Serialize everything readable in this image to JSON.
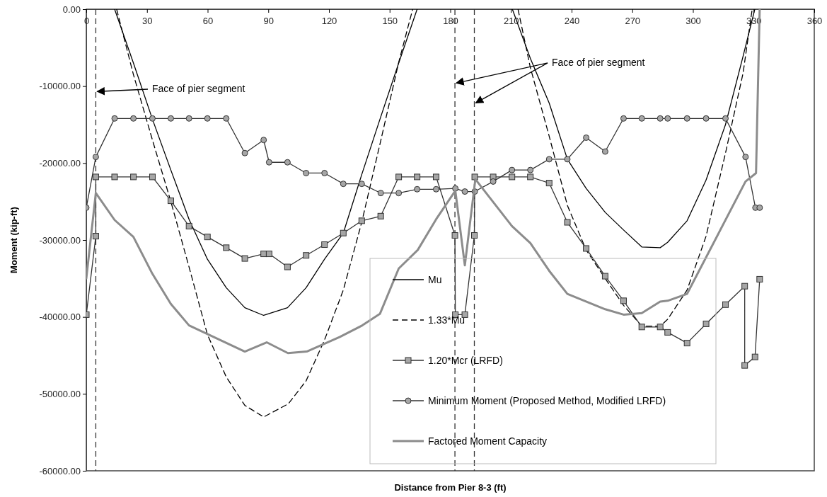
{
  "chart_data": {
    "type": "line",
    "xlabel": "Distance from Pier 8-3 (ft)",
    "ylabel": "Moment (kip-ft)",
    "xlim": [
      0,
      360
    ],
    "xticks": [
      0,
      30,
      60,
      90,
      120,
      150,
      180,
      210,
      240,
      270,
      300,
      330,
      360
    ],
    "ylim": [
      -60000,
      0
    ],
    "yticks": [
      {
        "value": 0,
        "label": "0.00"
      },
      {
        "value": -10000,
        "label": "-10000.00"
      },
      {
        "value": -20000,
        "label": "-20000.00"
      },
      {
        "value": -30000,
        "label": "-30000.00"
      },
      {
        "value": -40000,
        "label": "-40000.00"
      },
      {
        "value": -50000,
        "label": "-50000.00"
      },
      {
        "value": -60000,
        "label": "-60000.00"
      }
    ],
    "grid": false,
    "legend": "bottom right",
    "series": [
      {
        "name": "Mu",
        "color": "#000000",
        "line_style": "solid",
        "marker": "none",
        "x": [
          14,
          23.3,
          32.7,
          41.8,
          50.8,
          59.9,
          69.2,
          78.4,
          87.7,
          99.5,
          108.7,
          117.8,
          127.1,
          136.2,
          145.6,
          154.5,
          163.6,
          187,
          210.7,
          219.6,
          228.9,
          237.9,
          247.2,
          256.6,
          265.7,
          274.7,
          283.8,
          287.5,
          297.1,
          306.5,
          316.1,
          324.8,
          330.6
        ],
        "values": [
          0,
          -7000,
          -14300,
          -20900,
          -27300,
          -32500,
          -36200,
          -38800,
          -39800,
          -38800,
          -36200,
          -32500,
          -29100,
          -21500,
          -14000,
          -7000,
          0,
          null,
          0,
          -6400,
          -12200,
          -19500,
          -23300,
          -26400,
          -28700,
          -30900,
          -31000,
          -30300,
          -27500,
          -22200,
          -15000,
          -6100,
          0
        ]
      },
      {
        "name": "1.33*Mu",
        "color": "#000000",
        "line_style": "dashed",
        "marker": "none",
        "x": [
          15,
          23.3,
          32.7,
          41.8,
          50.8,
          59.9,
          69.2,
          78.4,
          87.7,
          99.9,
          108.7,
          117.8,
          127.1,
          136.2,
          145.6,
          154.5,
          161.4,
          187,
          213.5,
          219.6,
          228.9,
          237.9,
          247.2,
          256.6,
          265.7,
          274.7,
          283.8,
          287.5,
          297.1,
          306.5,
          316.1,
          324.8,
          329.3
        ],
        "values": [
          0,
          -8500,
          -17000,
          -25000,
          -33500,
          -42300,
          -47800,
          -51500,
          -53000,
          -51300,
          -48300,
          -43000,
          -36500,
          -27700,
          -17100,
          -6900,
          0,
          null,
          0,
          -7600,
          -16500,
          -25500,
          -31300,
          -35000,
          -38500,
          -41200,
          -41200,
          -40300,
          -36500,
          -29500,
          -18700,
          -8300,
          0
        ]
      },
      {
        "name": "1.20*Mcr (LRFD)",
        "color": "#333333",
        "line_style": "solid",
        "marker": "square",
        "x": [
          0,
          4.7,
          4.7,
          14,
          23.3,
          32.7,
          41.8,
          50.8,
          59.9,
          69.2,
          78.4,
          87.7,
          90.4,
          99.5,
          108.7,
          117.8,
          127.1,
          136.2,
          145.6,
          154.5,
          163.6,
          173,
          182.3,
          182.5,
          187.2,
          191.9,
          192.1,
          201.2,
          210.5,
          219.6,
          228.9,
          237.9,
          247.2,
          256.6,
          265.7,
          274.7,
          283.8,
          287.5,
          297.1,
          306.5,
          316.1,
          325.6,
          325.6,
          330.7,
          333
        ],
        "values": [
          -39700,
          -29500,
          -21800,
          -21800,
          -21800,
          -21800,
          -24900,
          -28200,
          -29600,
          -31000,
          -32400,
          -31800,
          -31800,
          -33500,
          -32000,
          -30600,
          -29100,
          -27500,
          -26900,
          -21800,
          -21800,
          -21800,
          -29400,
          -39700,
          -39700,
          -29400,
          -21800,
          -21800,
          -21800,
          -21800,
          -22600,
          -27700,
          -31100,
          -34700,
          -37900,
          -41300,
          -41300,
          -42000,
          -43400,
          -40900,
          -38400,
          -36000,
          -46300,
          -45200,
          -35100
        ]
      },
      {
        "name": "Minimum Moment (Proposed Method, Modified LRFD)",
        "color": "#333333",
        "line_style": "solid",
        "marker": "circle",
        "x": [
          0,
          4.7,
          14,
          23.3,
          32.7,
          41.8,
          50.8,
          59.9,
          69.2,
          78.4,
          87.7,
          90.4,
          99.5,
          108.7,
          117.8,
          127.1,
          136.2,
          145.6,
          154.5,
          163.6,
          173,
          182.5,
          187.2,
          192.1,
          201.2,
          210.5,
          219.6,
          228.9,
          237.9,
          247.2,
          256.6,
          265.7,
          274.7,
          283.8,
          287.5,
          297.1,
          306.5,
          316.1,
          326,
          330.9,
          333
        ],
        "values": [
          -25800,
          -19200,
          -14200,
          -14200,
          -14200,
          -14200,
          -14200,
          -14200,
          -14200,
          -18700,
          -17000,
          -19900,
          -19900,
          -21300,
          -21300,
          -22700,
          -22700,
          -23900,
          -23900,
          -23400,
          -23400,
          -23300,
          -23700,
          -23700,
          -22400,
          -20900,
          -20900,
          -19500,
          -19500,
          -16700,
          -18500,
          -14200,
          -14200,
          -14200,
          -14200,
          -14200,
          -14200,
          -14200,
          -19200,
          -25800,
          -25800
        ]
      },
      {
        "name": "Factored Moment Capacity",
        "color": "#8c8c8c",
        "line_style": "solid",
        "marker": "none",
        "x": [
          0,
          4.7,
          14,
          23.3,
          32.7,
          41.8,
          50.8,
          78.4,
          89.2,
          99.7,
          109,
          125.4,
          136.5,
          145.2,
          154.5,
          163.9,
          173,
          182.5,
          187.2,
          192.4,
          210.5,
          219.6,
          228.9,
          237.9,
          256.6,
          265.7,
          274.7,
          283.8,
          287.5,
          297.1,
          326,
          331.2,
          333
        ],
        "values": [
          -35000,
          -23900,
          -27400,
          -29600,
          -34400,
          -38300,
          -41100,
          -44500,
          -43300,
          -44700,
          -44500,
          -42600,
          -41100,
          -39600,
          -33700,
          -31300,
          -27300,
          -23600,
          -33300,
          -22100,
          -28200,
          -30400,
          -34000,
          -37000,
          -39000,
          -39700,
          -39500,
          -38000,
          -37900,
          -37000,
          -22400,
          -21300,
          0
        ]
      }
    ],
    "ref_lines": [
      {
        "axis": "x",
        "value": 4.7,
        "line_style": "dashed",
        "color": "#333333"
      },
      {
        "axis": "x",
        "value": 182.3,
        "line_style": "dashed",
        "color": "#333333"
      },
      {
        "axis": "x",
        "value": 191.9,
        "line_style": "dashed",
        "color": "#333333"
      }
    ],
    "annotations": [
      {
        "text": "Face of pier segment",
        "x": 4.7,
        "y": -10700
      },
      {
        "text": "Face of pier segment",
        "x": 182.3,
        "y": -9600
      }
    ]
  }
}
